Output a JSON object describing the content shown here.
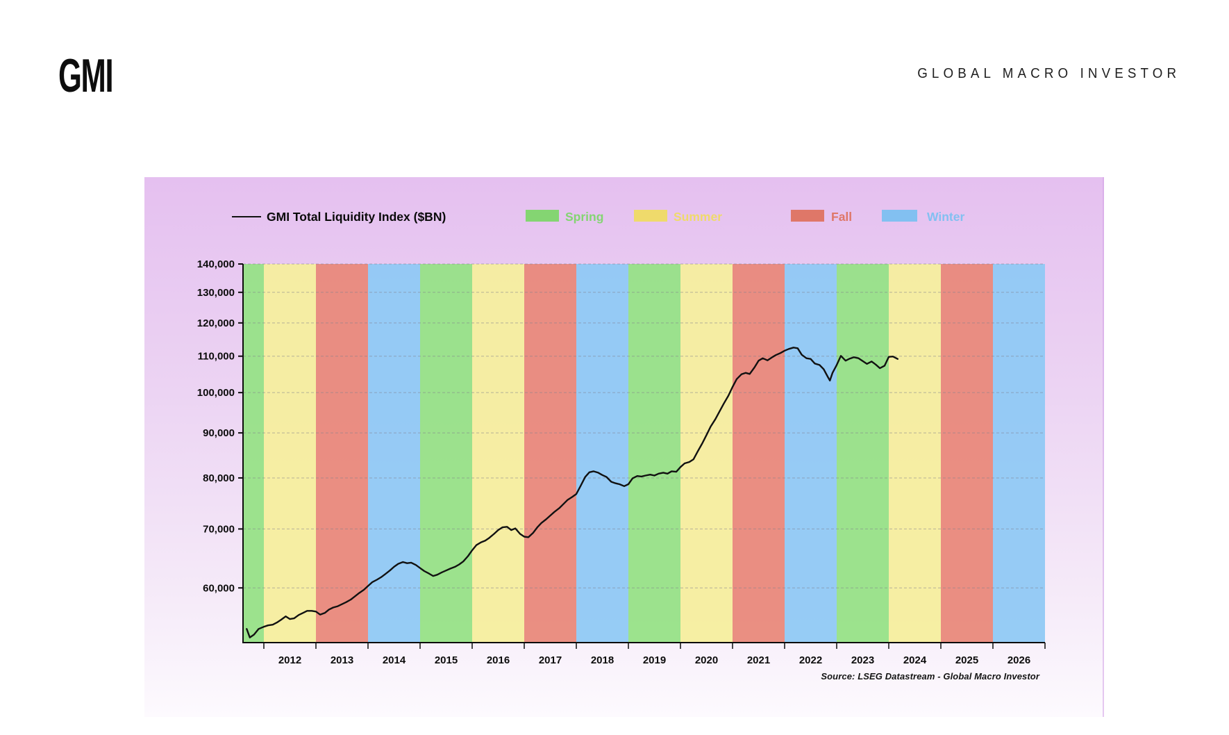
{
  "brand": {
    "logo": "GMI",
    "masthead": "GLOBAL MACRO INVESTOR"
  },
  "legend": {
    "series_label": "GMI Total Liquidity Index ($BN)",
    "series_line_color": "#111111",
    "seasons": [
      {
        "label": "Spring",
        "color": "#84d572"
      },
      {
        "label": "Summer",
        "color": "#efda6b"
      },
      {
        "label": "Fall",
        "color": "#df7768"
      },
      {
        "label": "Winter",
        "color": "#82c0f1"
      }
    ]
  },
  "source_note": "Source: LSEG Datastream - Global Macro Investor",
  "chart_data": {
    "type": "line",
    "title": "GMI Total Liquidity Index ($BN)",
    "y_scale": "log",
    "grid": "dashed-horizontal",
    "ylim": [
      52000,
      140000
    ],
    "xlim": [
      2011.6,
      2027.0
    ],
    "y_ticks": [
      140000,
      130000,
      120000,
      110000,
      100000,
      90000,
      80000,
      70000,
      60000
    ],
    "x_tick_years": [
      2012,
      2013,
      2014,
      2015,
      2016,
      2017,
      2018,
      2019,
      2020,
      2021,
      2022,
      2023,
      2024,
      2025,
      2026
    ],
    "band_colors": {
      "Spring": "#97e187",
      "Summer": "#f5ee9e",
      "Fall": "#e9897b",
      "Winter": "#90c9f4"
    },
    "season_bands": [
      {
        "from": 2011.6,
        "to": 2012,
        "season": "Spring"
      },
      {
        "from": 2012,
        "to": 2013,
        "season": "Summer"
      },
      {
        "from": 2013,
        "to": 2014,
        "season": "Fall"
      },
      {
        "from": 2014,
        "to": 2015,
        "season": "Winter"
      },
      {
        "from": 2015,
        "to": 2016,
        "season": "Spring"
      },
      {
        "from": 2016,
        "to": 2017,
        "season": "Summer"
      },
      {
        "from": 2017,
        "to": 2018,
        "season": "Fall"
      },
      {
        "from": 2018,
        "to": 2019,
        "season": "Winter"
      },
      {
        "from": 2019,
        "to": 2020,
        "season": "Spring"
      },
      {
        "from": 2020,
        "to": 2021,
        "season": "Summer"
      },
      {
        "from": 2021,
        "to": 2022,
        "season": "Fall"
      },
      {
        "from": 2022,
        "to": 2023,
        "season": "Winter"
      },
      {
        "from": 2023,
        "to": 2024,
        "season": "Spring"
      },
      {
        "from": 2024,
        "to": 2025,
        "season": "Summer"
      },
      {
        "from": 2025,
        "to": 2026,
        "season": "Fall"
      },
      {
        "from": 2026,
        "to": 2027,
        "season": "Winter"
      }
    ],
    "series": [
      {
        "name": "GMI Total Liquidity Index ($BN)",
        "color": "#111111",
        "points": [
          [
            2011.67,
            53900
          ],
          [
            2011.73,
            52700
          ],
          [
            2011.81,
            53100
          ],
          [
            2011.9,
            53900
          ],
          [
            2012.0,
            54200
          ],
          [
            2012.08,
            54400
          ],
          [
            2012.17,
            54500
          ],
          [
            2012.25,
            54800
          ],
          [
            2012.33,
            55200
          ],
          [
            2012.42,
            55700
          ],
          [
            2012.5,
            55300
          ],
          [
            2012.58,
            55400
          ],
          [
            2012.67,
            55900
          ],
          [
            2012.75,
            56200
          ],
          [
            2012.83,
            56500
          ],
          [
            2012.92,
            56500
          ],
          [
            2013.0,
            56400
          ],
          [
            2013.08,
            55950
          ],
          [
            2013.17,
            56200
          ],
          [
            2013.25,
            56700
          ],
          [
            2013.33,
            57000
          ],
          [
            2013.42,
            57200
          ],
          [
            2013.5,
            57500
          ],
          [
            2013.58,
            57800
          ],
          [
            2013.67,
            58200
          ],
          [
            2013.75,
            58700
          ],
          [
            2013.83,
            59200
          ],
          [
            2013.92,
            59700
          ],
          [
            2014.0,
            60300
          ],
          [
            2014.08,
            60900
          ],
          [
            2014.17,
            61300
          ],
          [
            2014.25,
            61700
          ],
          [
            2014.33,
            62200
          ],
          [
            2014.42,
            62800
          ],
          [
            2014.5,
            63400
          ],
          [
            2014.58,
            63900
          ],
          [
            2014.67,
            64200
          ],
          [
            2014.75,
            64000
          ],
          [
            2014.83,
            64100
          ],
          [
            2014.92,
            63700
          ],
          [
            2015.0,
            63200
          ],
          [
            2015.08,
            62700
          ],
          [
            2015.17,
            62300
          ],
          [
            2015.25,
            61900
          ],
          [
            2015.33,
            62100
          ],
          [
            2015.42,
            62500
          ],
          [
            2015.5,
            62800
          ],
          [
            2015.58,
            63100
          ],
          [
            2015.67,
            63400
          ],
          [
            2015.75,
            63800
          ],
          [
            2015.83,
            64300
          ],
          [
            2015.92,
            65200
          ],
          [
            2016.0,
            66200
          ],
          [
            2016.08,
            67100
          ],
          [
            2016.17,
            67600
          ],
          [
            2016.25,
            67900
          ],
          [
            2016.33,
            68400
          ],
          [
            2016.42,
            69100
          ],
          [
            2016.5,
            69800
          ],
          [
            2016.58,
            70300
          ],
          [
            2016.67,
            70400
          ],
          [
            2016.75,
            69800
          ],
          [
            2016.83,
            70100
          ],
          [
            2016.92,
            69100
          ],
          [
            2017.0,
            68600
          ],
          [
            2017.08,
            68500
          ],
          [
            2017.17,
            69300
          ],
          [
            2017.25,
            70300
          ],
          [
            2017.33,
            71100
          ],
          [
            2017.42,
            71800
          ],
          [
            2017.5,
            72500
          ],
          [
            2017.58,
            73200
          ],
          [
            2017.67,
            73900
          ],
          [
            2017.75,
            74700
          ],
          [
            2017.83,
            75500
          ],
          [
            2017.92,
            76100
          ],
          [
            2018.0,
            76700
          ],
          [
            2018.08,
            78300
          ],
          [
            2018.17,
            80200
          ],
          [
            2018.25,
            81200
          ],
          [
            2018.33,
            81400
          ],
          [
            2018.42,
            81100
          ],
          [
            2018.5,
            80600
          ],
          [
            2018.58,
            80200
          ],
          [
            2018.67,
            79200
          ],
          [
            2018.75,
            78900
          ],
          [
            2018.83,
            78700
          ],
          [
            2018.92,
            78300
          ],
          [
            2019.0,
            78700
          ],
          [
            2019.08,
            79900
          ],
          [
            2019.17,
            80400
          ],
          [
            2019.25,
            80300
          ],
          [
            2019.33,
            80500
          ],
          [
            2019.42,
            80700
          ],
          [
            2019.5,
            80500
          ],
          [
            2019.58,
            80900
          ],
          [
            2019.67,
            81100
          ],
          [
            2019.75,
            80900
          ],
          [
            2019.83,
            81400
          ],
          [
            2019.92,
            81300
          ],
          [
            2020.0,
            82300
          ],
          [
            2020.08,
            83100
          ],
          [
            2020.17,
            83400
          ],
          [
            2020.25,
            84000
          ],
          [
            2020.33,
            85700
          ],
          [
            2020.42,
            87600
          ],
          [
            2020.5,
            89500
          ],
          [
            2020.58,
            91500
          ],
          [
            2020.67,
            93300
          ],
          [
            2020.75,
            95200
          ],
          [
            2020.83,
            97100
          ],
          [
            2020.92,
            99200
          ],
          [
            2021.0,
            101500
          ],
          [
            2021.08,
            103600
          ],
          [
            2021.17,
            104900
          ],
          [
            2021.25,
            105300
          ],
          [
            2021.33,
            105000
          ],
          [
            2021.42,
            106800
          ],
          [
            2021.5,
            108700
          ],
          [
            2021.58,
            109400
          ],
          [
            2021.67,
            108800
          ],
          [
            2021.75,
            109600
          ],
          [
            2021.83,
            110300
          ],
          [
            2021.92,
            110900
          ],
          [
            2022.0,
            111600
          ],
          [
            2022.08,
            112100
          ],
          [
            2022.17,
            112500
          ],
          [
            2022.25,
            112300
          ],
          [
            2022.33,
            110400
          ],
          [
            2022.42,
            109400
          ],
          [
            2022.5,
            109200
          ],
          [
            2022.58,
            107900
          ],
          [
            2022.67,
            107500
          ],
          [
            2022.75,
            106300
          ],
          [
            2022.83,
            104200
          ],
          [
            2022.87,
            103200
          ],
          [
            2022.92,
            105300
          ],
          [
            2023.0,
            107500
          ],
          [
            2023.08,
            110100
          ],
          [
            2023.17,
            108700
          ],
          [
            2023.25,
            109300
          ],
          [
            2023.33,
            109700
          ],
          [
            2023.42,
            109400
          ],
          [
            2023.5,
            108600
          ],
          [
            2023.58,
            107800
          ],
          [
            2023.67,
            108500
          ],
          [
            2023.75,
            107600
          ],
          [
            2023.83,
            106600
          ],
          [
            2023.92,
            107300
          ],
          [
            2024.0,
            109800
          ],
          [
            2024.08,
            109900
          ],
          [
            2024.17,
            109200
          ]
        ]
      }
    ]
  }
}
